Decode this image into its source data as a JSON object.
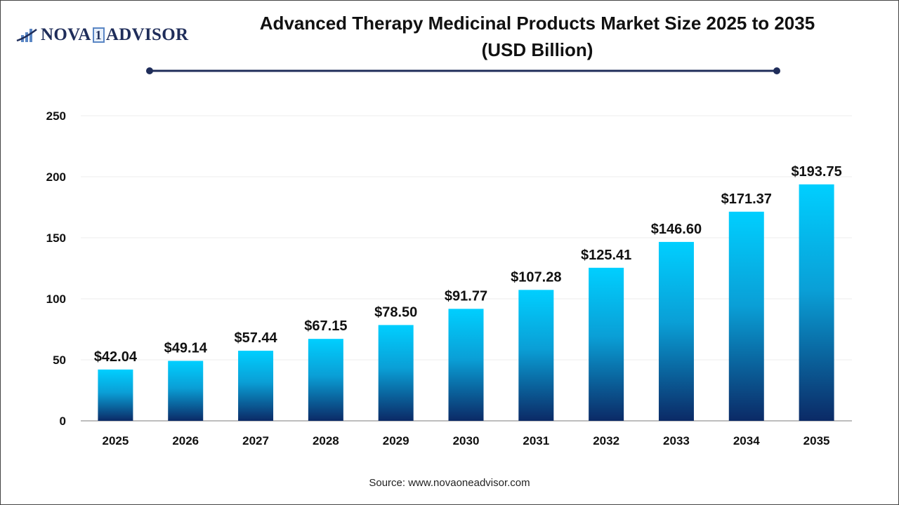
{
  "logo": {
    "part1": "NOVA",
    "part2": "1",
    "part3": "ADVISOR"
  },
  "source": "Source: www.novaoneadvisor.com",
  "colors": {
    "bar_top": "#00CFFF",
    "bar_bottom": "#0B2A66",
    "title_rule": "#1f2d5a"
  },
  "chart_data": {
    "type": "bar",
    "title": "Advanced Therapy Medicinal Products Market Size 2025 to 2035",
    "subtitle": "(USD Billion)",
    "categories": [
      "2025",
      "2026",
      "2027",
      "2028",
      "2029",
      "2030",
      "2031",
      "2032",
      "2033",
      "2034",
      "2035"
    ],
    "values": [
      42.04,
      49.14,
      57.44,
      67.15,
      78.5,
      91.77,
      107.28,
      125.41,
      146.6,
      171.37,
      193.75
    ],
    "data_labels": [
      "$42.04",
      "$49.14",
      "$57.44",
      "$67.15",
      "$78.50",
      "$91.77",
      "$107.28",
      "$125.41",
      "$146.60",
      "$171.37",
      "$193.75"
    ],
    "ylim": [
      0,
      250
    ],
    "yticks": [
      0,
      50,
      100,
      150,
      200,
      250
    ],
    "grid": true,
    "xlabel": "",
    "ylabel": ""
  }
}
